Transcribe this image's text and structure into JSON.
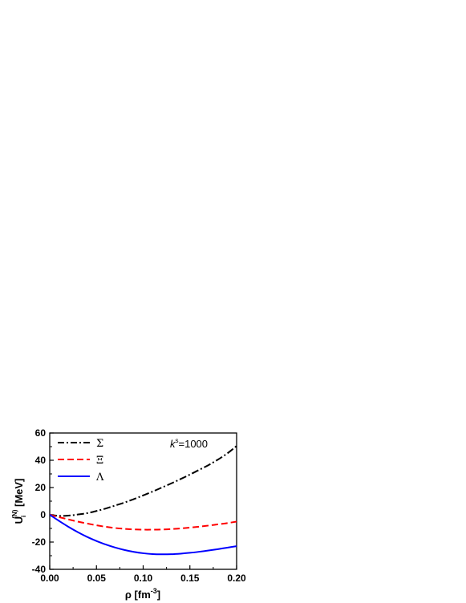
{
  "chart_data": {
    "type": "line",
    "title": "",
    "xlabel": "ρ [fm",
    "xlabel_sup": "-3",
    "xlabel_end": "]",
    "ylabel": "U",
    "ylabel_sub": "i",
    "ylabel_sup": "(N)",
    "ylabel_end": " [MeV]",
    "xlim": [
      0.0,
      0.2
    ],
    "ylim": [
      -40,
      60
    ],
    "xticks": [
      0.0,
      0.05,
      0.1,
      0.15,
      0.2
    ],
    "xtick_labels": [
      "0.00",
      "0.05",
      "0.10",
      "0.15",
      "0.20"
    ],
    "yticks": [
      -40,
      -20,
      0,
      20,
      40,
      60
    ],
    "ytick_labels": [
      "-40",
      "-20",
      "0",
      "20",
      "40",
      "60"
    ],
    "grid": false,
    "legend_position": "top-left",
    "annotation": {
      "text_k": "k",
      "text_sup": "s",
      "text_rest": "=1000"
    },
    "series": [
      {
        "name": "Σ",
        "color": "#000000",
        "dash": "dashdot",
        "x": [
          0.0,
          0.01,
          0.02,
          0.03,
          0.04,
          0.05,
          0.06,
          0.07,
          0.08,
          0.09,
          0.1,
          0.11,
          0.12,
          0.13,
          0.14,
          0.15,
          0.16,
          0.17,
          0.18,
          0.19,
          0.2
        ],
        "y": [
          0.0,
          -0.8,
          -0.6,
          0.2,
          1.2,
          2.8,
          4.6,
          6.8,
          9.0,
          11.5,
          14.2,
          17.0,
          20.0,
          23.0,
          26.2,
          29.5,
          33.0,
          36.5,
          40.5,
          45.0,
          50.5
        ]
      },
      {
        "name": "Ξ",
        "color": "#ff0000",
        "dash": "dash",
        "x": [
          0.0,
          0.01,
          0.02,
          0.03,
          0.04,
          0.05,
          0.06,
          0.07,
          0.08,
          0.09,
          0.1,
          0.11,
          0.12,
          0.13,
          0.14,
          0.15,
          0.16,
          0.17,
          0.18,
          0.19,
          0.2
        ],
        "y": [
          0.0,
          -1.7,
          -3.4,
          -5.0,
          -6.4,
          -7.7,
          -8.8,
          -9.7,
          -10.3,
          -10.7,
          -10.9,
          -10.9,
          -10.8,
          -10.5,
          -10.0,
          -9.4,
          -8.7,
          -7.9,
          -7.0,
          -6.1,
          -5.0
        ]
      },
      {
        "name": "Λ",
        "color": "#0000ff",
        "dash": "solid",
        "x": [
          0.0,
          0.01,
          0.02,
          0.03,
          0.04,
          0.05,
          0.06,
          0.07,
          0.08,
          0.09,
          0.1,
          0.11,
          0.12,
          0.13,
          0.14,
          0.15,
          0.16,
          0.17,
          0.18,
          0.19,
          0.2
        ],
        "y": [
          0.0,
          -4.5,
          -8.8,
          -12.7,
          -16.2,
          -19.2,
          -21.8,
          -24.0,
          -25.8,
          -27.2,
          -28.2,
          -28.8,
          -29.0,
          -28.9,
          -28.5,
          -27.9,
          -27.1,
          -26.2,
          -25.2,
          -24.1,
          -23.0
        ]
      }
    ]
  }
}
